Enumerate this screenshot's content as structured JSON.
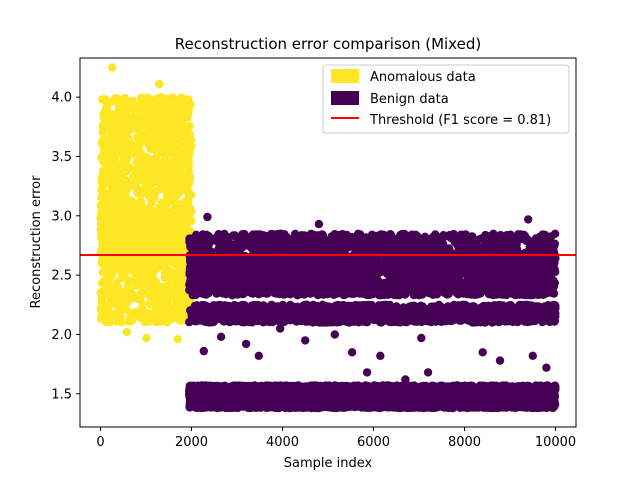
{
  "chart_data": {
    "type": "scatter",
    "title": "Reconstruction error comparison (Mixed)",
    "xlabel": "Sample index",
    "ylabel": "Reconstruction error",
    "xlim": [
      -450,
      10450
    ],
    "ylim": [
      1.22,
      4.33
    ],
    "xticks": [
      0,
      2000,
      4000,
      6000,
      8000,
      10000
    ],
    "yticks": [
      1.5,
      2.0,
      2.5,
      3.0,
      3.5,
      4.0
    ],
    "xtick_labels": [
      "0",
      "2000",
      "4000",
      "6000",
      "8000",
      "10000"
    ],
    "ytick_labels": [
      "1.5",
      "2.0",
      "2.5",
      "3.0",
      "3.5",
      "4.0"
    ],
    "grid": false,
    "legend_position": "top-right",
    "threshold": 2.67,
    "series": [
      {
        "name": "Anomalous data",
        "color": "#fde725",
        "x_range": [
          0,
          2000
        ],
        "bands": [
          {
            "low": 2.1,
            "high": 4.0,
            "count": 1400
          },
          {
            "low": 2.55,
            "high": 3.05,
            "count": 500
          }
        ],
        "outliers": [
          {
            "x": 260,
            "y": 4.25
          },
          {
            "x": 1290,
            "y": 4.11
          },
          {
            "x": 580,
            "y": 2.02
          },
          {
            "x": 1010,
            "y": 1.97
          },
          {
            "x": 1700,
            "y": 1.96
          },
          {
            "x": 40,
            "y": 3.98
          }
        ]
      },
      {
        "name": "Benign data",
        "color": "#440154",
        "x_range": [
          1950,
          10000
        ],
        "bands": [
          {
            "low": 1.38,
            "high": 1.57,
            "count": 4600
          },
          {
            "low": 2.1,
            "high": 2.25,
            "count": 1300
          },
          {
            "low": 2.33,
            "high": 2.48,
            "count": 1100
          },
          {
            "low": 2.5,
            "high": 2.67,
            "count": 1200
          },
          {
            "low": 2.67,
            "high": 2.85,
            "count": 800
          }
        ],
        "outliers": [
          {
            "x": 2350,
            "y": 2.99
          },
          {
            "x": 9400,
            "y": 2.97
          },
          {
            "x": 4800,
            "y": 2.93
          },
          {
            "x": 2270,
            "y": 1.86
          },
          {
            "x": 3480,
            "y": 1.82
          },
          {
            "x": 5530,
            "y": 1.85
          },
          {
            "x": 6150,
            "y": 1.82
          },
          {
            "x": 8400,
            "y": 1.85
          },
          {
            "x": 9500,
            "y": 1.82
          },
          {
            "x": 3200,
            "y": 1.92
          },
          {
            "x": 4500,
            "y": 1.95
          },
          {
            "x": 7050,
            "y": 1.97
          },
          {
            "x": 6700,
            "y": 1.62
          },
          {
            "x": 5860,
            "y": 1.68
          },
          {
            "x": 7200,
            "y": 1.68
          },
          {
            "x": 8780,
            "y": 1.78
          },
          {
            "x": 5150,
            "y": 2.0
          },
          {
            "x": 3950,
            "y": 2.05
          },
          {
            "x": 9800,
            "y": 1.72
          },
          {
            "x": 2650,
            "y": 1.98
          }
        ]
      },
      {
        "name": "Threshold (F1 score = 0.81)",
        "color": "#ff0000"
      }
    ]
  }
}
